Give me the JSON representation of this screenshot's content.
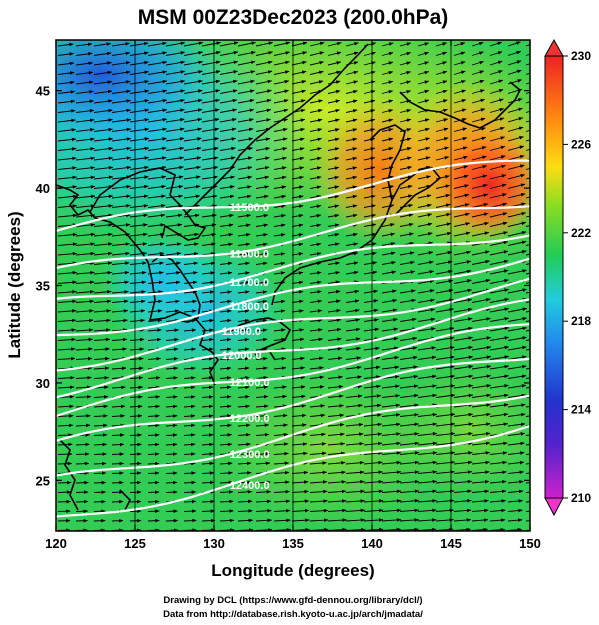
{
  "title": "MSM 00Z23Dec2023 (200.0hPa)",
  "x_axis": {
    "label": "Longitude (degrees)",
    "range": [
      120,
      150
    ],
    "ticks": [
      "120",
      "125",
      "130",
      "135",
      "140",
      "145",
      "150"
    ]
  },
  "y_axis": {
    "label": "Latitude  (degrees)",
    "range": [
      22.4,
      47.6
    ],
    "ticks": [
      "25",
      "30",
      "35",
      "40",
      "45"
    ]
  },
  "colorbar": {
    "range": [
      210,
      230
    ],
    "ticks": [
      "210",
      "214",
      "218",
      "222",
      "226",
      "230"
    ],
    "colors": [
      "#cc22cc",
      "#3322cc",
      "#2288ee",
      "#22ccdd",
      "#22cc66",
      "#99dd22",
      "#ffcc11",
      "#ff6611",
      "#ee2222"
    ]
  },
  "contours": [
    {
      "label": "11500.0",
      "value": 11500,
      "lat_at_120": 37.8
    },
    {
      "label": "11600.0",
      "value": 11600,
      "lat_at_120": 35.6
    },
    {
      "label": "11700.0",
      "value": 11700,
      "lat_at_120": 34.0
    },
    {
      "label": "11800.0",
      "value": 11800,
      "lat_at_120": 32.4
    },
    {
      "label": "11900.0",
      "value": 11900,
      "lat_at_120": 30.9
    },
    {
      "label": "12000.0",
      "value": 12000,
      "lat_at_120": 29.6
    },
    {
      "label": "12100.0",
      "value": 12100,
      "lat_at_120": 28.4
    },
    {
      "label": "12200.0",
      "value": 12200,
      "lat_at_120": 26.8
    },
    {
      "label": "12300.0",
      "value": 12300,
      "lat_at_120": 24.9
    },
    {
      "label": "12400.0",
      "value": 12400,
      "lat_at_120": 23.0
    }
  ],
  "credits": {
    "line1": "Drawing by DCL (https://www.gfd-dennou.org/library/dcl/)",
    "line2": "Data from http://database.rish.kyoto-u.ac.jp/arch/jmadata/"
  }
}
